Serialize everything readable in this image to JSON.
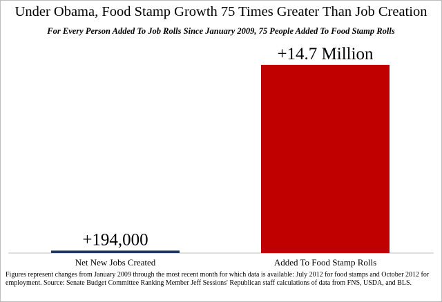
{
  "chart_data": {
    "type": "bar",
    "title": "Under Obama, Food Stamp Growth 75 Times Greater Than Job Creation",
    "subtitle": "For Every Person Added To Job Rolls Since January 2009, 75 People Added To Food Stamp Rolls",
    "categories": [
      "Net New Jobs Created",
      "Added To Food Stamp Rolls"
    ],
    "values": [
      194000,
      14700000
    ],
    "data_labels": [
      "+194,000",
      "+14.7 Million"
    ],
    "colors": [
      "#1f3864",
      "#c00000"
    ],
    "ylim": [
      0,
      14700000
    ],
    "grid": false,
    "legend": "none"
  },
  "footnote": "Figures represent changes from January 2009 through the most recent month for which data is available: July 2012 for food stamps and October 2012 for employment. Source: Senate Budget Committee Ranking Member Jeff Sessions' Republican staff calculations of data from FNS, USDA, and BLS."
}
